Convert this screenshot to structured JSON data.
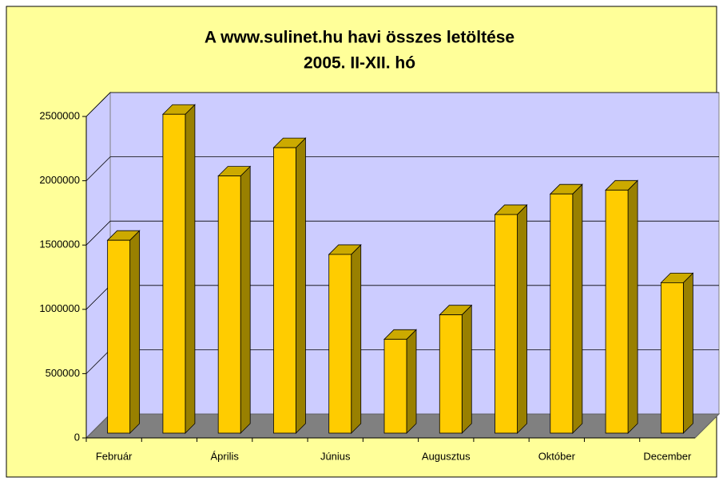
{
  "chart_data": {
    "type": "bar3d",
    "title": [
      "A www.sulinet.hu havi összes letöltése",
      "2005. II-XII. hó"
    ],
    "categories": [
      "Február",
      null,
      "Április",
      null,
      "Június",
      null,
      "Augusztus",
      null,
      "Október",
      null,
      "December"
    ],
    "values": [
      1500000,
      2480000,
      2000000,
      2220000,
      1390000,
      730000,
      920000,
      1700000,
      1860000,
      1890000,
      1170000
    ],
    "color": "#ffcc00",
    "ylim": [
      0,
      2500000
    ],
    "yticks": [
      0,
      500000,
      1000000,
      1500000,
      2000000,
      2500000
    ],
    "grid": true
  }
}
